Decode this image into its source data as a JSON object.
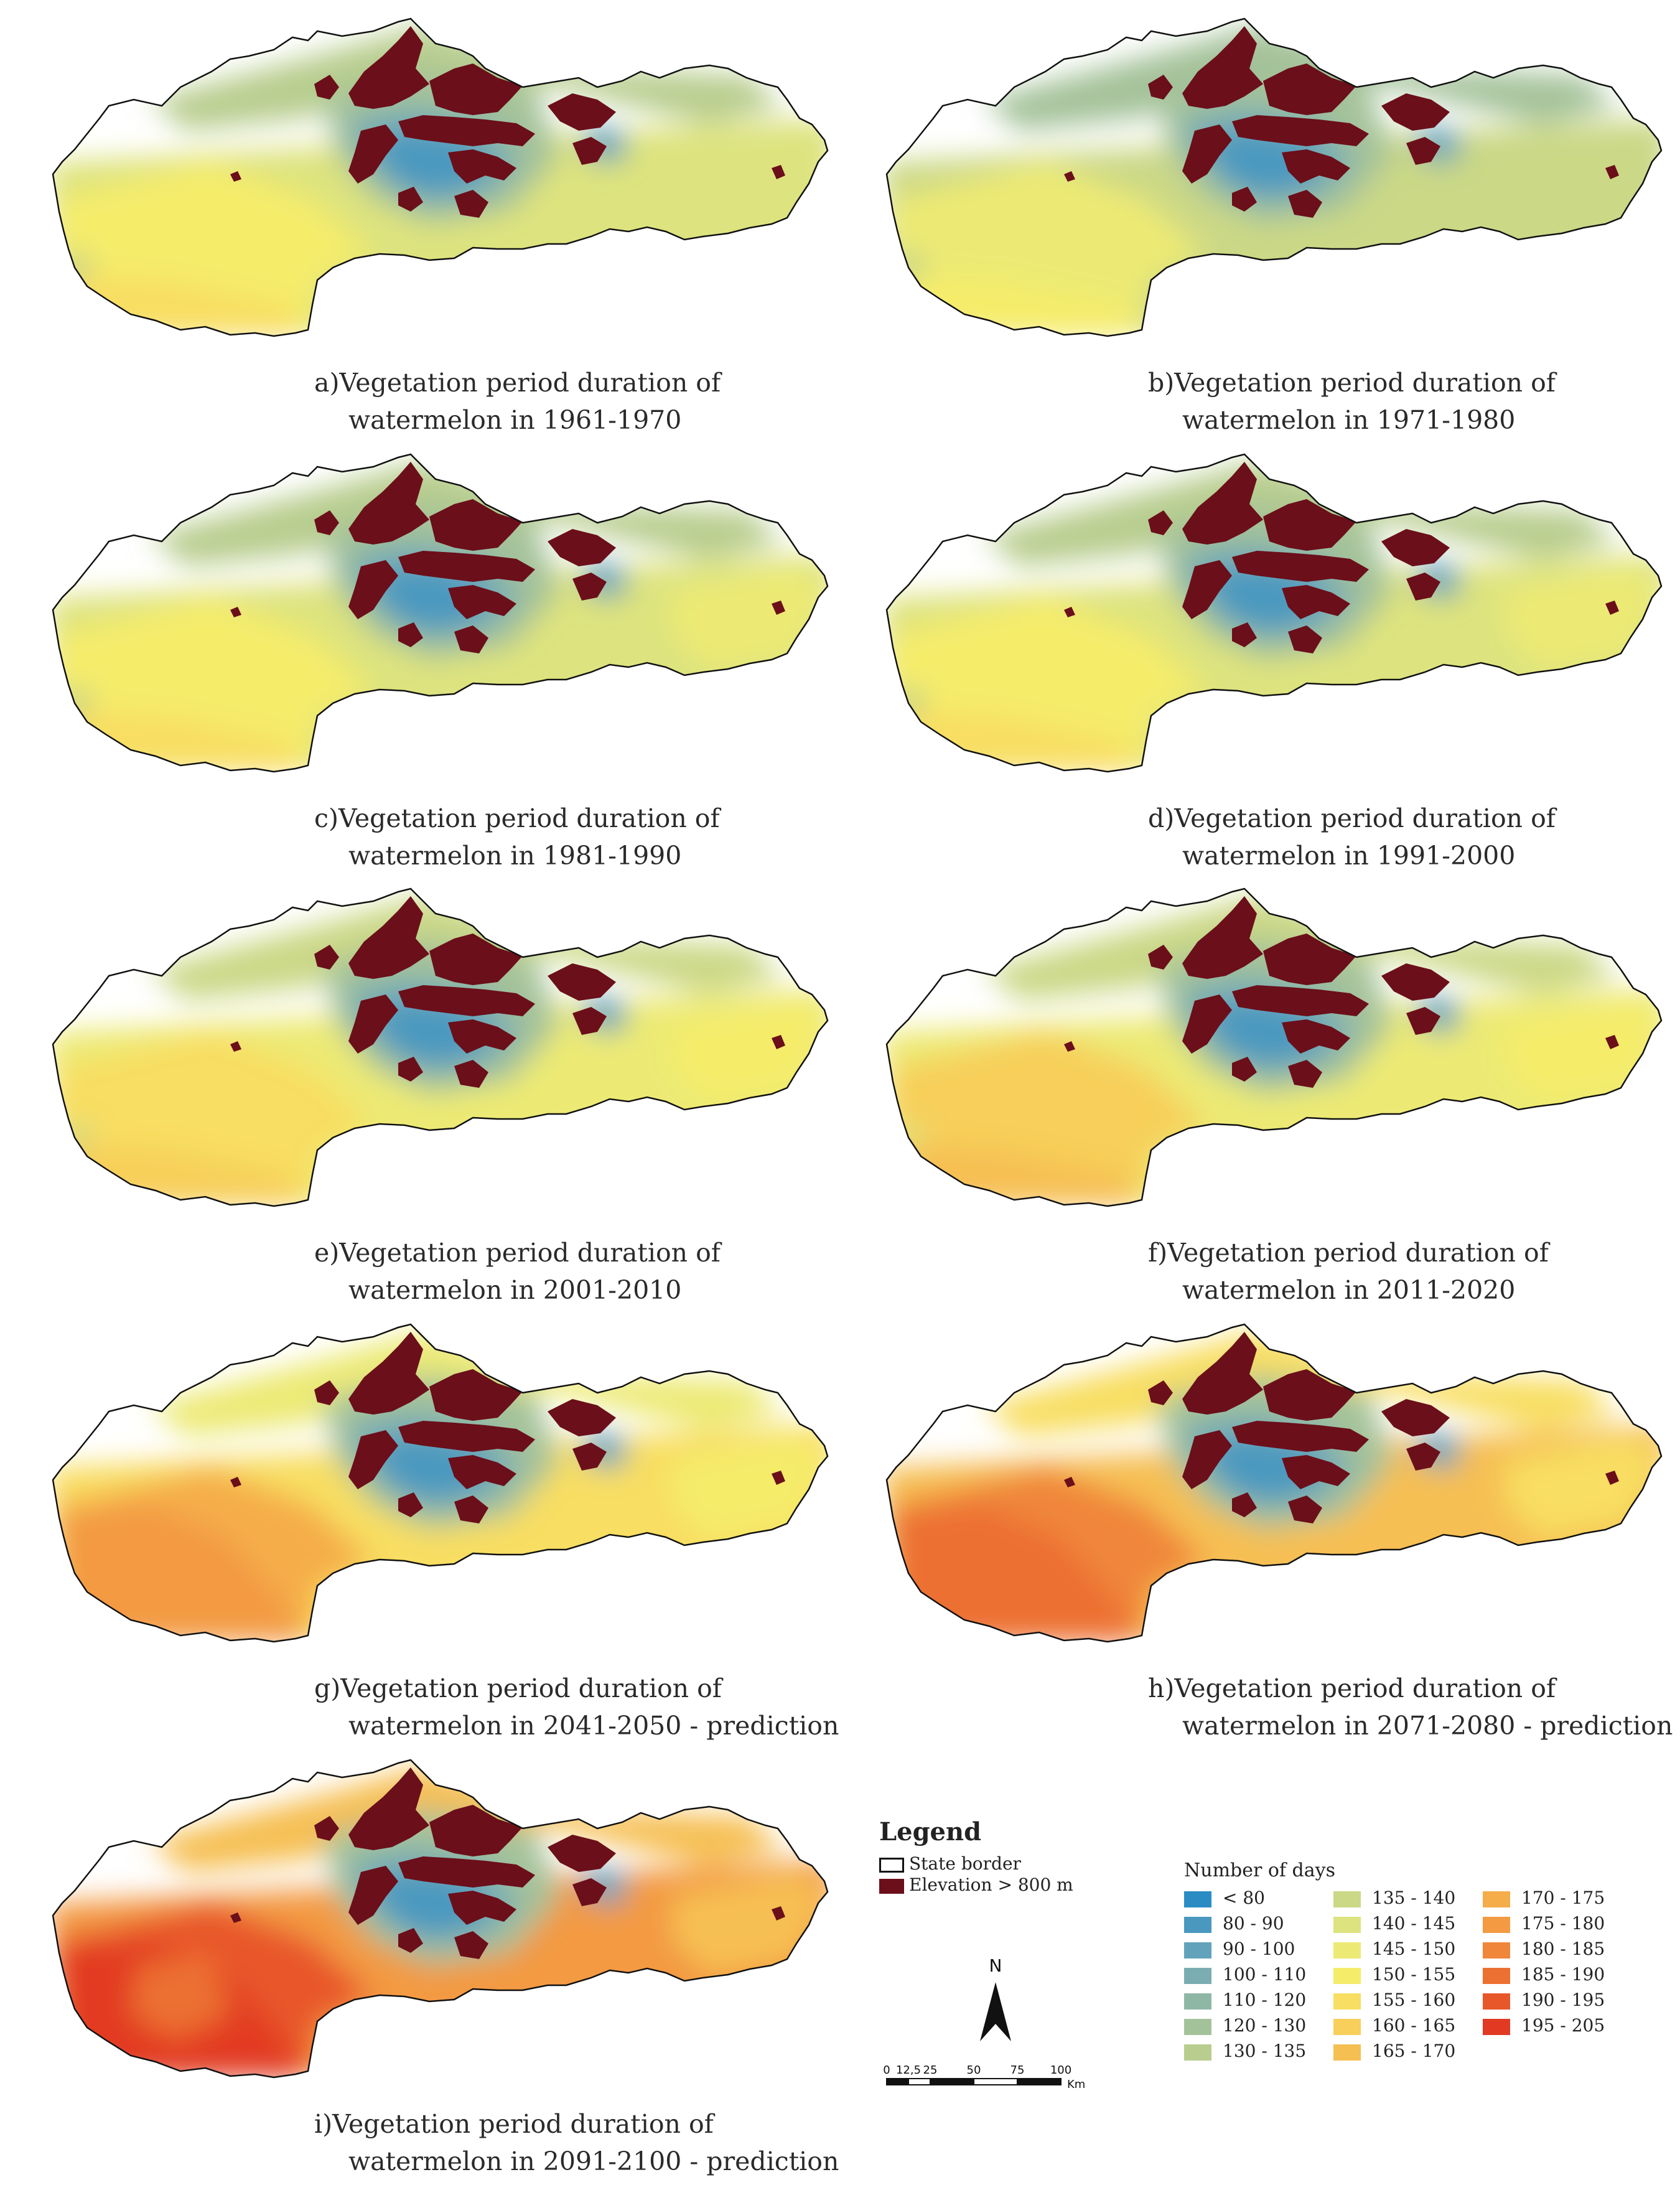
{
  "panels": [
    {
      "letter": "a)",
      "line1": "Vegetation period duration of",
      "line2": "watermelon in 1961-1970",
      "stage": 0
    },
    {
      "letter": "b)",
      "line1": "Vegetation period duration of",
      "line2": "watermelon in 1971-1980",
      "stage": 1
    },
    {
      "letter": "c)",
      "line1": "Vegetation period duration of",
      "line2": "watermelon in 1981-1990",
      "stage": 2
    },
    {
      "letter": "d)",
      "line1": "Vegetation period duration of",
      "line2": "watermelon in 1991-2000",
      "stage": 3
    },
    {
      "letter": "e)",
      "line1": "Vegetation period duration of",
      "line2": "watermelon in 2001-2010",
      "stage": 4
    },
    {
      "letter": "f)",
      "line1": "Vegetation period duration of",
      "line2": "watermelon in 2011-2020",
      "stage": 5
    },
    {
      "letter": "g)",
      "line1": "Vegetation period duration of",
      "line2": "watermelon in 2041-2050 - prediction",
      "stage": 6
    },
    {
      "letter": "h)",
      "line1": "Vegetation period duration of",
      "line2": "watermelon in 2071-2080 - prediction",
      "stage": 7
    },
    {
      "letter": "i)",
      "line1": "Vegetation period duration of",
      "line2": "watermelon in 2091-2100 - prediction",
      "stage": 8
    }
  ],
  "legend": {
    "title": "Legend",
    "state_border": "State border",
    "elevation": "Elevation > 800 m",
    "elevation_color": "#6b0f1a",
    "number_of_days": "Number of days",
    "classes": [
      {
        "label": "< 80",
        "color": "#2b8cc4"
      },
      {
        "label": "80 - 90",
        "color": "#4a98c0"
      },
      {
        "label": "90 - 100",
        "color": "#62a2bb"
      },
      {
        "label": "100 - 110",
        "color": "#7aadb2"
      },
      {
        "label": "110 - 120",
        "color": "#8fb7a6"
      },
      {
        "label": "120 - 130",
        "color": "#a4c29a"
      },
      {
        "label": "130 - 135",
        "color": "#b8cd8e"
      },
      {
        "label": "135 - 140",
        "color": "#cbd886"
      },
      {
        "label": "140 - 145",
        "color": "#dde37e"
      },
      {
        "label": "145 - 150",
        "color": "#ecea74"
      },
      {
        "label": "150 - 155",
        "color": "#f5ec6a"
      },
      {
        "label": "155 - 160",
        "color": "#f8de62"
      },
      {
        "label": "160 - 165",
        "color": "#f7cf5a"
      },
      {
        "label": "165 - 170",
        "color": "#f6bf52"
      },
      {
        "label": "170 - 175",
        "color": "#f5ad4a"
      },
      {
        "label": "175 - 180",
        "color": "#f39a42"
      },
      {
        "label": "180 - 185",
        "color": "#f0863a"
      },
      {
        "label": "185 - 190",
        "color": "#ec7032"
      },
      {
        "label": "190 - 195",
        "color": "#e8572a"
      },
      {
        "label": "195 - 205",
        "color": "#e23a22"
      }
    ]
  },
  "north": "N",
  "scale": {
    "ticks": [
      "0",
      "12,5",
      "25",
      "50",
      "75",
      "100"
    ],
    "unit": "Km"
  }
}
